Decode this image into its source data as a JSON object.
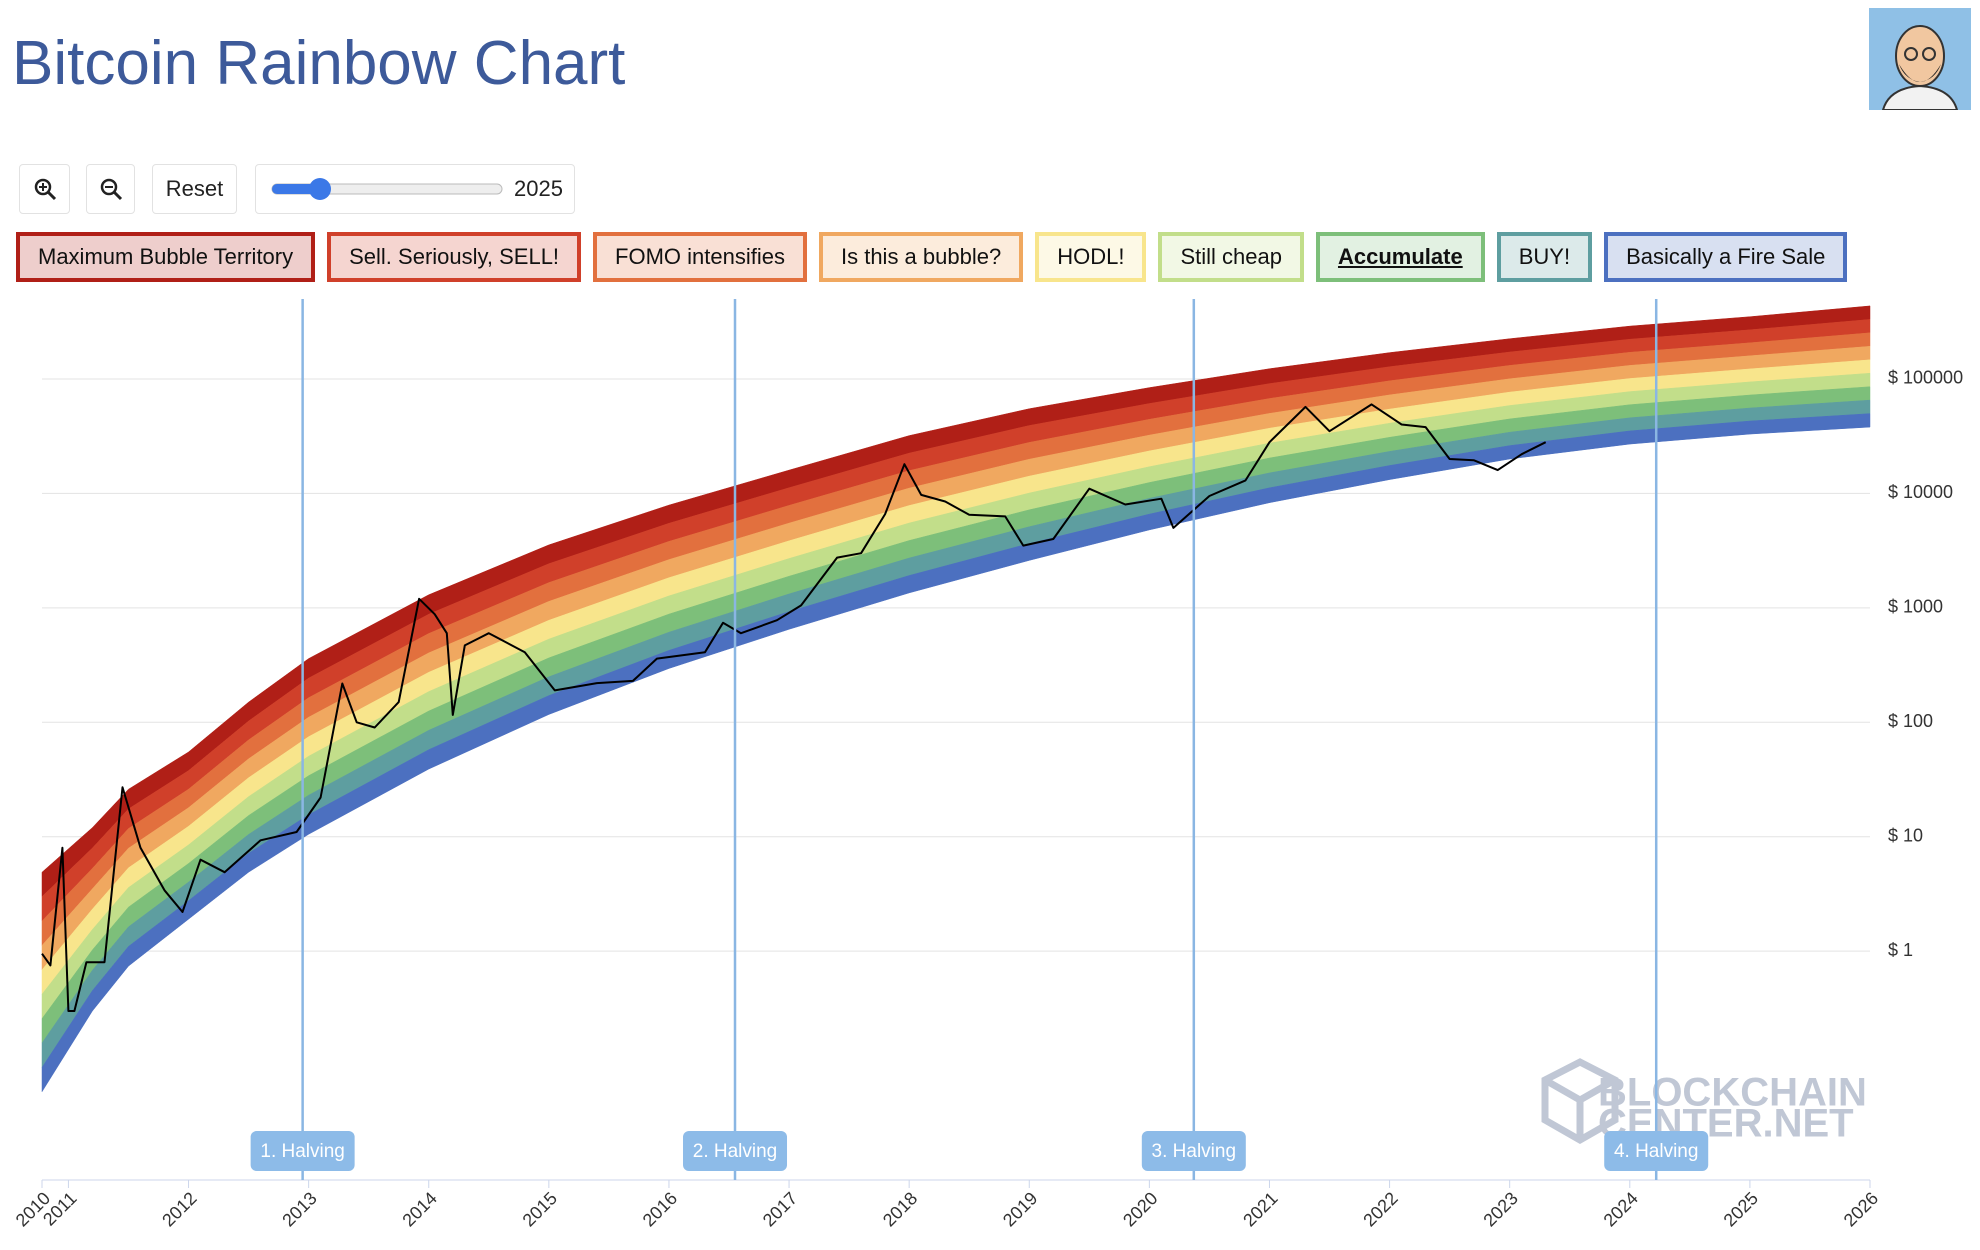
{
  "page": {
    "title": "Bitcoin Rainbow Chart",
    "reset": "Reset",
    "slider_value": "2025",
    "watermark": [
      "BLOCKCHAIN",
      "CENTER.NET"
    ]
  },
  "chart_data": {
    "type": "line",
    "log_scale": true,
    "grid": true,
    "color": "#000000",
    "xlim": [
      2010.78,
      2026
    ],
    "ylim": [
      0.01,
      500000
    ],
    "xticks": [
      {
        "value": 2010.78,
        "label": "2010"
      },
      2011,
      2012,
      2013,
      2014,
      2015,
      2016,
      2017,
      2018,
      2019,
      2020,
      2021,
      2022,
      2023,
      2024,
      2025,
      2026
    ],
    "yticks": [
      {
        "value": 1,
        "label": "$ 1"
      },
      {
        "value": 10,
        "label": "$ 10"
      },
      {
        "value": 100,
        "label": "$ 100"
      },
      {
        "value": 1000,
        "label": "$ 1000"
      },
      {
        "value": 10000,
        "label": "$ 10000"
      },
      {
        "value": 100000,
        "label": "$ 100000"
      }
    ],
    "x": [
      2010.78,
      2010.85,
      2010.95,
      2011.0,
      2011.05,
      2011.15,
      2011.3,
      2011.45,
      2011.6,
      2011.8,
      2011.95,
      2012.1,
      2012.3,
      2012.6,
      2012.9,
      2013.1,
      2013.28,
      2013.4,
      2013.55,
      2013.75,
      2013.92,
      2014.05,
      2014.15,
      2014.2,
      2014.3,
      2014.5,
      2014.8,
      2015.05,
      2015.4,
      2015.7,
      2015.9,
      2016.3,
      2016.45,
      2016.6,
      2016.9,
      2017.1,
      2017.4,
      2017.6,
      2017.8,
      2017.96,
      2018.1,
      2018.3,
      2018.5,
      2018.8,
      2018.95,
      2019.2,
      2019.5,
      2019.8,
      2020.1,
      2020.2,
      2020.5,
      2020.8,
      2021.0,
      2021.3,
      2021.5,
      2021.85,
      2022.1,
      2022.3,
      2022.5,
      2022.7,
      2022.9,
      2023.1,
      2023.3
    ],
    "values": [
      0.95,
      0.75,
      8,
      0.3,
      0.3,
      0.8,
      0.8,
      27,
      8,
      3.4,
      2.2,
      6.3,
      4.9,
      9.3,
      11,
      22,
      218,
      100,
      90,
      150,
      1200,
      880,
      600,
      116,
      470,
      600,
      410,
      190,
      220,
      230,
      360,
      410,
      740,
      600,
      780,
      1050,
      2750,
      3000,
      6600,
      18000,
      9700,
      8500,
      6500,
      6300,
      3500,
      4000,
      11000,
      8000,
      9000,
      5000,
      9500,
      13000,
      28000,
      57000,
      35000,
      60000,
      40000,
      38000,
      20000,
      19500,
      16000,
      22000,
      28000
    ],
    "bands": {
      "names": [
        "Maximum Bubble Territory",
        "Sell. Seriously, SELL!",
        "FOMO intensifies",
        "Is this a bubble?",
        "HODL!",
        "Still cheap",
        "Accumulate",
        "BUY!",
        "Basically a Fire Sale"
      ],
      "colors": [
        "#b01f17",
        "#d0402a",
        "#e2703e",
        "#f0a860",
        "#f8e58c",
        "#c2de8a",
        "#7dbf7a",
        "#5e9ea0",
        "#4c70c0"
      ],
      "x": [
        2010.78,
        2011.2,
        2011.5,
        2012,
        2012.5,
        2013,
        2014,
        2015,
        2016,
        2017,
        2018,
        2019,
        2020,
        2021,
        2022,
        2023,
        2024,
        2025,
        2026
      ],
      "high": [
        4.9,
        12,
        26,
        55,
        150,
        360,
        1300,
        3550,
        7900,
        16000,
        32000,
        55000,
        84000,
        123000,
        170000,
        225000,
        290000,
        350000,
        435000
      ],
      "low": [
        0.059,
        0.3,
        0.74,
        1.9,
        4.9,
        10.5,
        39,
        117,
        295,
        650,
        1350,
        2600,
        4800,
        8300,
        13200,
        20000,
        27000,
        33000,
        38000
      ]
    },
    "halvings": [
      {
        "x": 2012.95,
        "label": "1. Halving"
      },
      {
        "x": 2016.55,
        "label": "2. Halving"
      },
      {
        "x": 2020.37,
        "label": "3. Halving"
      },
      {
        "x": 2024.22,
        "label": "4. Halving"
      }
    ]
  }
}
